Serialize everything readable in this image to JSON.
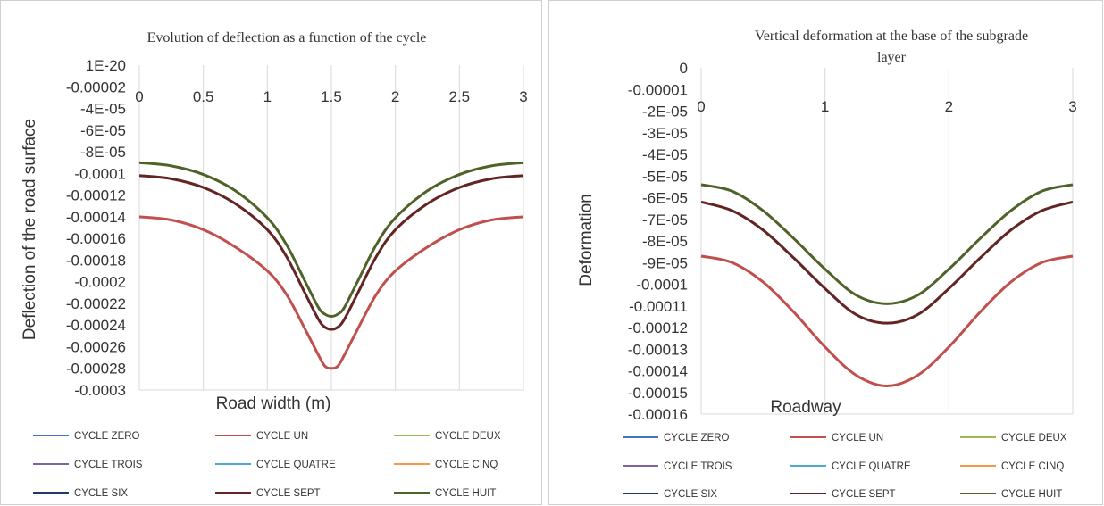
{
  "colors": {
    "CYCLE ZERO": "#4472c4",
    "CYCLE UN": "#c0504d",
    "CYCLE DEUX": "#9bbb59",
    "CYCLE TROIS": "#8064a2",
    "CYCLE QUATRE": "#4bacc6",
    "CYCLE CINQ": "#f79646",
    "CYCLE SIX": "#1f3864",
    "CYCLE SEPT": "#632523",
    "CYCLE HUIT": "#4f6228"
  },
  "chart_data": [
    {
      "type": "line",
      "title": "Evolution of deflection as a function of the cycle",
      "xlabel": "Road width (m)",
      "ylabel": "Deflection of the road surface",
      "xlim": [
        0,
        3
      ],
      "ylim": [
        -0.0003,
        0
      ],
      "xticks": [
        "0",
        "0.5",
        "1",
        "1.5",
        "2",
        "2.5",
        "3"
      ],
      "yticks": [
        "1E-20",
        "-0.00002",
        "-4E-05",
        "-6E-05",
        "-8E-05",
        "-0.0001",
        "-0.00012",
        "-0.00014",
        "-0.00016",
        "-0.00018",
        "-0.0002",
        "-0.00022",
        "-0.00024",
        "-0.00026",
        "-0.00028",
        "-0.0003"
      ],
      "grid": "vertical",
      "legend_position": "bottom",
      "x": [
        0,
        0.25,
        0.5,
        0.75,
        1.0,
        1.15,
        1.3,
        1.4,
        1.45,
        1.5,
        1.55,
        1.6,
        1.7,
        1.85,
        2.0,
        2.25,
        2.5,
        2.75,
        3.0
      ],
      "series": [
        {
          "name": "CYCLE ZERO",
          "values": null
        },
        {
          "name": "CYCLE UN",
          "values": [
            -0.00014,
            -0.000143,
            -0.000152,
            -0.000168,
            -0.00019,
            -0.000212,
            -0.000245,
            -0.000268,
            -0.000278,
            -0.00028,
            -0.000278,
            -0.000268,
            -0.000245,
            -0.000212,
            -0.00019,
            -0.000168,
            -0.000152,
            -0.000143,
            -0.00014
          ]
        },
        {
          "name": "CYCLE DEUX",
          "values": null
        },
        {
          "name": "CYCLE TROIS",
          "values": null
        },
        {
          "name": "CYCLE QUATRE",
          "values": null
        },
        {
          "name": "CYCLE CINQ",
          "values": null
        },
        {
          "name": "CYCLE SIX",
          "values": null
        },
        {
          "name": "CYCLE SEPT",
          "values": [
            -0.000102,
            -0.000105,
            -0.000113,
            -0.000128,
            -0.000152,
            -0.000177,
            -0.000212,
            -0.000235,
            -0.000242,
            -0.000244,
            -0.000242,
            -0.000235,
            -0.000212,
            -0.000177,
            -0.000152,
            -0.000128,
            -0.000113,
            -0.000105,
            -0.000102
          ]
        },
        {
          "name": "CYCLE HUIT",
          "values": [
            -9e-05,
            -9.3e-05,
            -0.000101,
            -0.000116,
            -0.000141,
            -0.000166,
            -0.000201,
            -0.000224,
            -0.00023,
            -0.000232,
            -0.00023,
            -0.000224,
            -0.000201,
            -0.000166,
            -0.000141,
            -0.000116,
            -0.000101,
            -9.3e-05,
            -9e-05
          ]
        }
      ]
    },
    {
      "type": "line",
      "title": "Vertical deformation at the base of the subgrade layer",
      "xlabel": "Roadway",
      "ylabel": "Deformation",
      "xlim": [
        0,
        3
      ],
      "ylim": [
        -0.00016,
        0
      ],
      "xticks": [
        "0",
        "1",
        "2",
        "3"
      ],
      "yticks": [
        "0",
        "-0.00001",
        "-2E-05",
        "-3E-05",
        "-4E-05",
        "-5E-05",
        "-6E-05",
        "-7E-05",
        "-8E-05",
        "-9E-05",
        "-0.0001",
        "-0.00011",
        "-0.00012",
        "-0.00013",
        "-0.00014",
        "-0.00015",
        "-0.00016"
      ],
      "grid": "vertical",
      "legend_position": "bottom",
      "x": [
        0,
        0.25,
        0.5,
        0.75,
        1.0,
        1.25,
        1.5,
        1.75,
        2.0,
        2.25,
        2.5,
        2.75,
        3.0
      ],
      "series": [
        {
          "name": "CYCLE ZERO",
          "values": null
        },
        {
          "name": "CYCLE UN",
          "values": [
            -8.7e-05,
            -9e-05,
            -9.9e-05,
            -0.000113,
            -0.000129,
            -0.000142,
            -0.000147,
            -0.000142,
            -0.000129,
            -0.000113,
            -9.9e-05,
            -9e-05,
            -8.7e-05
          ]
        },
        {
          "name": "CYCLE DEUX",
          "values": null
        },
        {
          "name": "CYCLE TROIS",
          "values": null
        },
        {
          "name": "CYCLE QUATRE",
          "values": null
        },
        {
          "name": "CYCLE CINQ",
          "values": null
        },
        {
          "name": "CYCLE SIX",
          "values": null
        },
        {
          "name": "CYCLE SEPT",
          "values": [
            -6.2e-05,
            -6.6e-05,
            -7.5e-05,
            -8.8e-05,
            -0.000102,
            -0.000114,
            -0.000118,
            -0.000114,
            -0.000102,
            -8.8e-05,
            -7.5e-05,
            -6.6e-05,
            -6.2e-05
          ]
        },
        {
          "name": "CYCLE HUIT",
          "values": [
            -5.4e-05,
            -5.7e-05,
            -6.6e-05,
            -7.9e-05,
            -9.3e-05,
            -0.000105,
            -0.000109,
            -0.000105,
            -9.3e-05,
            -7.9e-05,
            -6.6e-05,
            -5.7e-05,
            -5.4e-05
          ]
        }
      ]
    }
  ]
}
